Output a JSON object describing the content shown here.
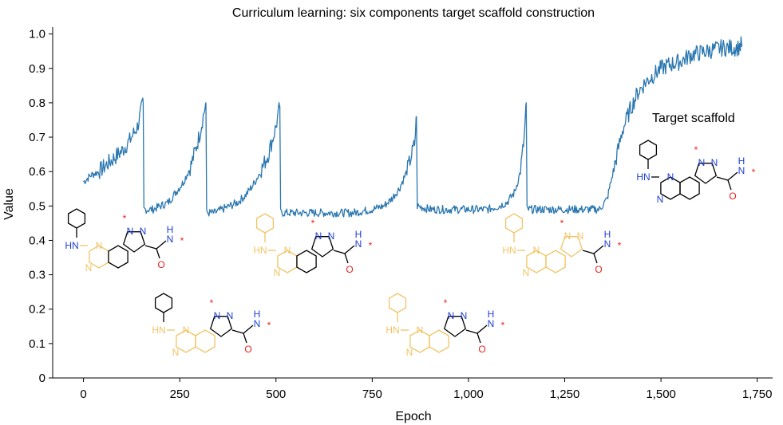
{
  "chart_data": {
    "type": "line",
    "title": "Curriculum learning: six components target scaffold construction",
    "xlabel": "Epoch",
    "ylabel": "Value",
    "xlim": [
      -80,
      1790
    ],
    "ylim": [
      0,
      1.02
    ],
    "x_ticks": [
      0,
      250,
      500,
      750,
      1000,
      1250,
      1500,
      1750
    ],
    "x_tick_labels": [
      "0",
      "250",
      "500",
      "750",
      "1,000",
      "1,250",
      "1,500",
      "1,750"
    ],
    "y_ticks": [
      0,
      0.1,
      0.2,
      0.3,
      0.4,
      0.5,
      0.6,
      0.7,
      0.8,
      0.9,
      1.0
    ],
    "y_tick_labels": [
      "0",
      "0.1",
      "0.2",
      "0.3",
      "0.4",
      "0.5",
      "0.6",
      "0.7",
      "0.8",
      "0.9",
      "1.0"
    ],
    "grid": false,
    "line_color": "#2a77b0",
    "series": [
      {
        "segments": [
          {
            "x": [
              0,
              20,
              40,
              60,
              80,
              100,
              120,
              140,
              155
            ],
            "y": [
              0.57,
              0.59,
              0.6,
              0.62,
              0.64,
              0.66,
              0.69,
              0.73,
              0.8
            ]
          },
          {
            "x": [
              157,
              180,
              200,
              220,
              240,
              260,
              280,
              300,
              318
            ],
            "y": [
              0.49,
              0.49,
              0.5,
              0.51,
              0.54,
              0.57,
              0.62,
              0.7,
              0.8
            ]
          },
          {
            "x": [
              320,
              340,
              360,
              380,
              400,
              420,
              440,
              460,
              480,
              500,
              510
            ],
            "y": [
              0.48,
              0.48,
              0.49,
              0.5,
              0.51,
              0.53,
              0.56,
              0.6,
              0.65,
              0.73,
              0.79
            ]
          },
          {
            "x": [
              512,
              550,
              600,
              650,
              700,
              750,
              780,
              800,
              820,
              840,
              860,
              865
            ],
            "y": [
              0.48,
              0.48,
              0.48,
              0.48,
              0.48,
              0.49,
              0.5,
              0.52,
              0.55,
              0.6,
              0.68,
              0.76
            ]
          },
          {
            "x": [
              867,
              900,
              950,
              1000,
              1050,
              1080,
              1100,
              1120,
              1135,
              1145,
              1150
            ],
            "y": [
              0.5,
              0.49,
              0.49,
              0.49,
              0.49,
              0.5,
              0.51,
              0.54,
              0.6,
              0.7,
              0.8
            ]
          },
          {
            "x": [
              1152,
              1200,
              1250,
              1300,
              1340,
              1360,
              1380,
              1400,
              1420,
              1440,
              1460,
              1480,
              1500,
              1520,
              1550,
              1580,
              1620,
              1660,
              1700,
              1710
            ],
            "y": [
              0.49,
              0.49,
              0.49,
              0.49,
              0.49,
              0.52,
              0.62,
              0.72,
              0.78,
              0.83,
              0.86,
              0.88,
              0.9,
              0.91,
              0.92,
              0.94,
              0.95,
              0.96,
              0.96,
              0.97
            ]
          }
        ]
      }
    ],
    "annotations": [
      {
        "text": "Target scaffold",
        "x": 1590,
        "y": 0.76
      }
    ],
    "structure_labels": {
      "hn": "HN",
      "n": "N",
      "h": "H",
      "o": "O",
      "star": "*"
    },
    "component_colors": {
      "highlight": "#f2c464",
      "nitrogen": "#1f3fd6",
      "oxygen": "#e8231b",
      "bond": "#000000"
    }
  }
}
